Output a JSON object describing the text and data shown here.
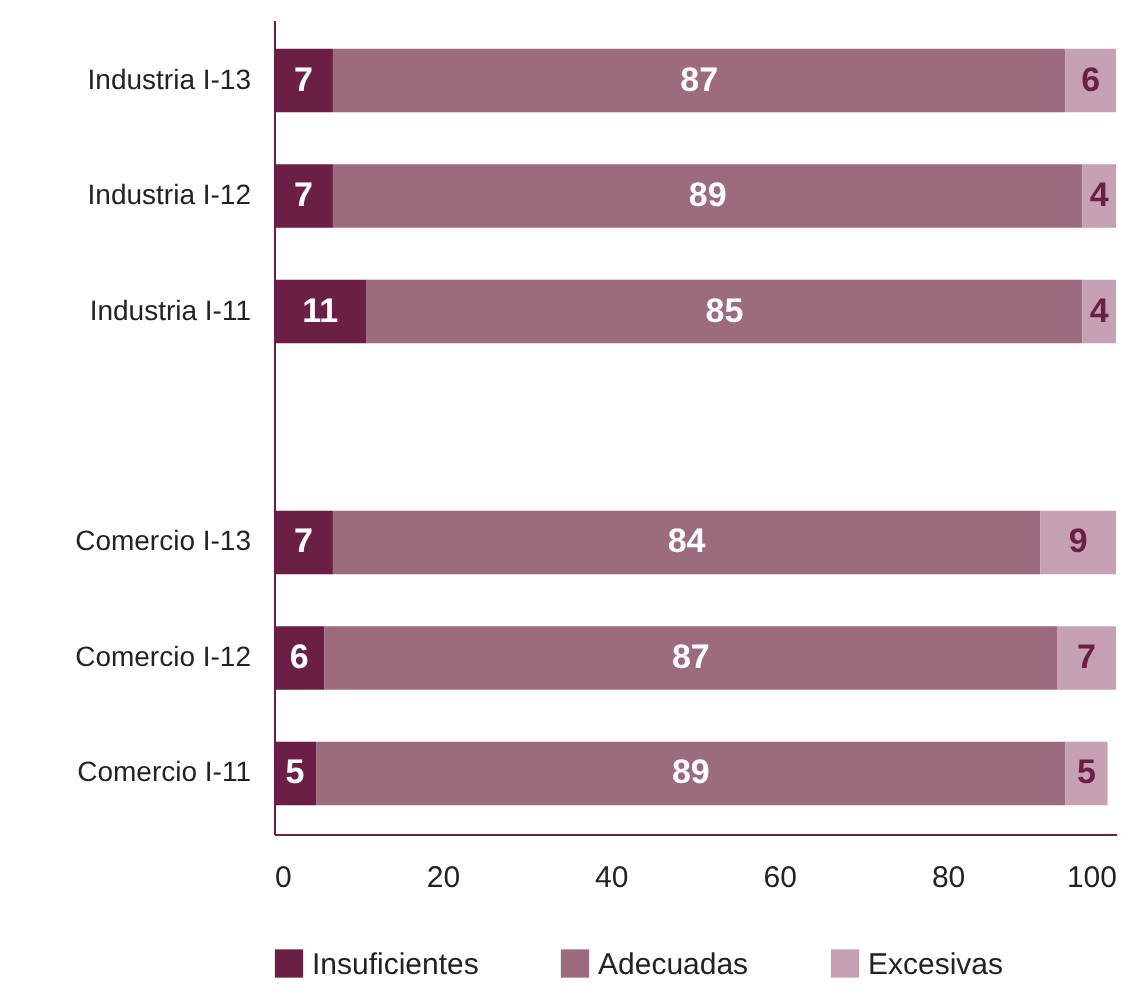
{
  "chart_data": {
    "type": "bar",
    "orientation": "horizontal",
    "stacked": true,
    "categories": [
      "Industria I-13",
      "Industria I-12",
      "Industria I-11",
      null,
      "Comercio I-13",
      "Comercio I-12",
      "Comercio I-11"
    ],
    "series": [
      {
        "name": "Insuficientes",
        "color": "#6b1f45",
        "values": [
          7,
          7,
          11,
          null,
          7,
          6,
          5
        ]
      },
      {
        "name": "Adecuadas",
        "color": "#9c6b80",
        "values": [
          87,
          89,
          85,
          null,
          84,
          87,
          89
        ]
      },
      {
        "name": "Excesivas",
        "color": "#c6a1b3",
        "values": [
          6,
          4,
          4,
          null,
          9,
          7,
          5
        ]
      }
    ],
    "xlim": [
      0,
      100
    ],
    "xticks": [
      0,
      20,
      40,
      60,
      80,
      100
    ],
    "data_labels": true,
    "legend": "bottom",
    "grid": false
  }
}
